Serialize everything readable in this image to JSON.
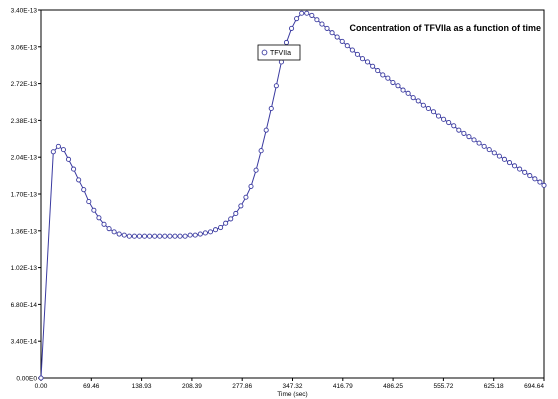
{
  "chart_data": {
    "type": "line",
    "title": "Concentration of TFVIIa as a function of time",
    "xlabel": "Time (sec)",
    "ylabel": "",
    "xlim": [
      0,
      694.64
    ],
    "ylim": [
      0,
      3.4e-13
    ],
    "x_ticks": [
      "0.00",
      "69.46",
      "138.93",
      "208.39",
      "277.86",
      "347.32",
      "416.79",
      "486.25",
      "555.72",
      "625.18",
      "694.64"
    ],
    "y_ticks": [
      "0.00E0",
      "3.40E-14",
      "6.80E-14",
      "1.02E-13",
      "1.36E-13",
      "1.70E-13",
      "2.04E-13",
      "2.38E-13",
      "2.72E-13",
      "3.06E-13",
      "3.40E-13"
    ],
    "grid": false,
    "legend": "top-center",
    "colors": {
      "line": "#3a3aa0",
      "marker_fill": "#ffffff"
    },
    "series": [
      {
        "name": "TFVIIa",
        "marker": "circle",
        "points": [
          [
            0,
            0
          ],
          [
            17,
            2.09e-13
          ],
          [
            24,
            2.14e-13
          ],
          [
            31,
            2.11e-13
          ],
          [
            38,
            2.02e-13
          ],
          [
            45,
            1.93e-13
          ],
          [
            52,
            1.83e-13
          ],
          [
            59,
            1.74e-13
          ],
          [
            66,
            1.63e-13
          ],
          [
            73,
            1.55e-13
          ],
          [
            80,
            1.48e-13
          ],
          [
            87,
            1.42e-13
          ],
          [
            94,
            1.38e-13
          ],
          [
            101,
            1.35e-13
          ],
          [
            108,
            1.33e-13
          ],
          [
            115,
            1.32e-13
          ],
          [
            122,
            1.31e-13
          ],
          [
            129,
            1.31e-13
          ],
          [
            136,
            1.31e-13
          ],
          [
            143,
            1.31e-13
          ],
          [
            150,
            1.31e-13
          ],
          [
            157,
            1.31e-13
          ],
          [
            164,
            1.31e-13
          ],
          [
            171,
            1.31e-13
          ],
          [
            178,
            1.31e-13
          ],
          [
            185,
            1.31e-13
          ],
          [
            192,
            1.31e-13
          ],
          [
            199,
            1.31e-13
          ],
          [
            206,
            1.32e-13
          ],
          [
            213,
            1.32e-13
          ],
          [
            220,
            1.33e-13
          ],
          [
            227,
            1.34e-13
          ],
          [
            234,
            1.35e-13
          ],
          [
            241,
            1.37e-13
          ],
          [
            248,
            1.39e-13
          ],
          [
            255,
            1.43e-13
          ],
          [
            262,
            1.47e-13
          ],
          [
            269,
            1.52e-13
          ],
          [
            276,
            1.59e-13
          ],
          [
            283,
            1.67e-13
          ],
          [
            290,
            1.77e-13
          ],
          [
            297,
            1.92e-13
          ],
          [
            304,
            2.1e-13
          ],
          [
            311,
            2.29e-13
          ],
          [
            318,
            2.49e-13
          ],
          [
            325,
            2.7e-13
          ],
          [
            332,
            2.92e-13
          ],
          [
            339,
            3.1e-13
          ],
          [
            346,
            3.23e-13
          ],
          [
            353,
            3.32e-13
          ],
          [
            360,
            3.37e-13
          ],
          [
            367,
            3.37e-13
          ],
          [
            374,
            3.35e-13
          ],
          [
            381,
            3.31e-13
          ],
          [
            388,
            3.27e-13
          ],
          [
            395,
            3.23e-13
          ],
          [
            402,
            3.19e-13
          ],
          [
            409,
            3.15e-13
          ],
          [
            416,
            3.11e-13
          ],
          [
            423,
            3.07e-13
          ],
          [
            430,
            3.03e-13
          ],
          [
            437,
            2.99e-13
          ],
          [
            444,
            2.95e-13
          ],
          [
            451,
            2.92e-13
          ],
          [
            458,
            2.88e-13
          ],
          [
            465,
            2.84e-13
          ],
          [
            472,
            2.8e-13
          ],
          [
            479,
            2.77e-13
          ],
          [
            486,
            2.73e-13
          ],
          [
            493,
            2.7e-13
          ],
          [
            500,
            2.66e-13
          ],
          [
            507,
            2.63e-13
          ],
          [
            514,
            2.59e-13
          ],
          [
            521,
            2.56e-13
          ],
          [
            528,
            2.52e-13
          ],
          [
            535,
            2.49e-13
          ],
          [
            542,
            2.46e-13
          ],
          [
            549,
            2.42e-13
          ],
          [
            556,
            2.39e-13
          ],
          [
            563,
            2.36e-13
          ],
          [
            570,
            2.33e-13
          ],
          [
            577,
            2.29e-13
          ],
          [
            584,
            2.26e-13
          ],
          [
            591,
            2.23e-13
          ],
          [
            598,
            2.2e-13
          ],
          [
            605,
            2.17e-13
          ],
          [
            612,
            2.14e-13
          ],
          [
            619,
            2.11e-13
          ],
          [
            626,
            2.08e-13
          ],
          [
            633,
            2.05e-13
          ],
          [
            640,
            2.02e-13
          ],
          [
            647,
            1.99e-13
          ],
          [
            654,
            1.96e-13
          ],
          [
            661,
            1.93e-13
          ],
          [
            668,
            1.9e-13
          ],
          [
            675,
            1.87e-13
          ],
          [
            682,
            1.84e-13
          ],
          [
            689,
            1.81e-13
          ],
          [
            694.64,
            1.78e-13
          ]
        ]
      }
    ]
  }
}
